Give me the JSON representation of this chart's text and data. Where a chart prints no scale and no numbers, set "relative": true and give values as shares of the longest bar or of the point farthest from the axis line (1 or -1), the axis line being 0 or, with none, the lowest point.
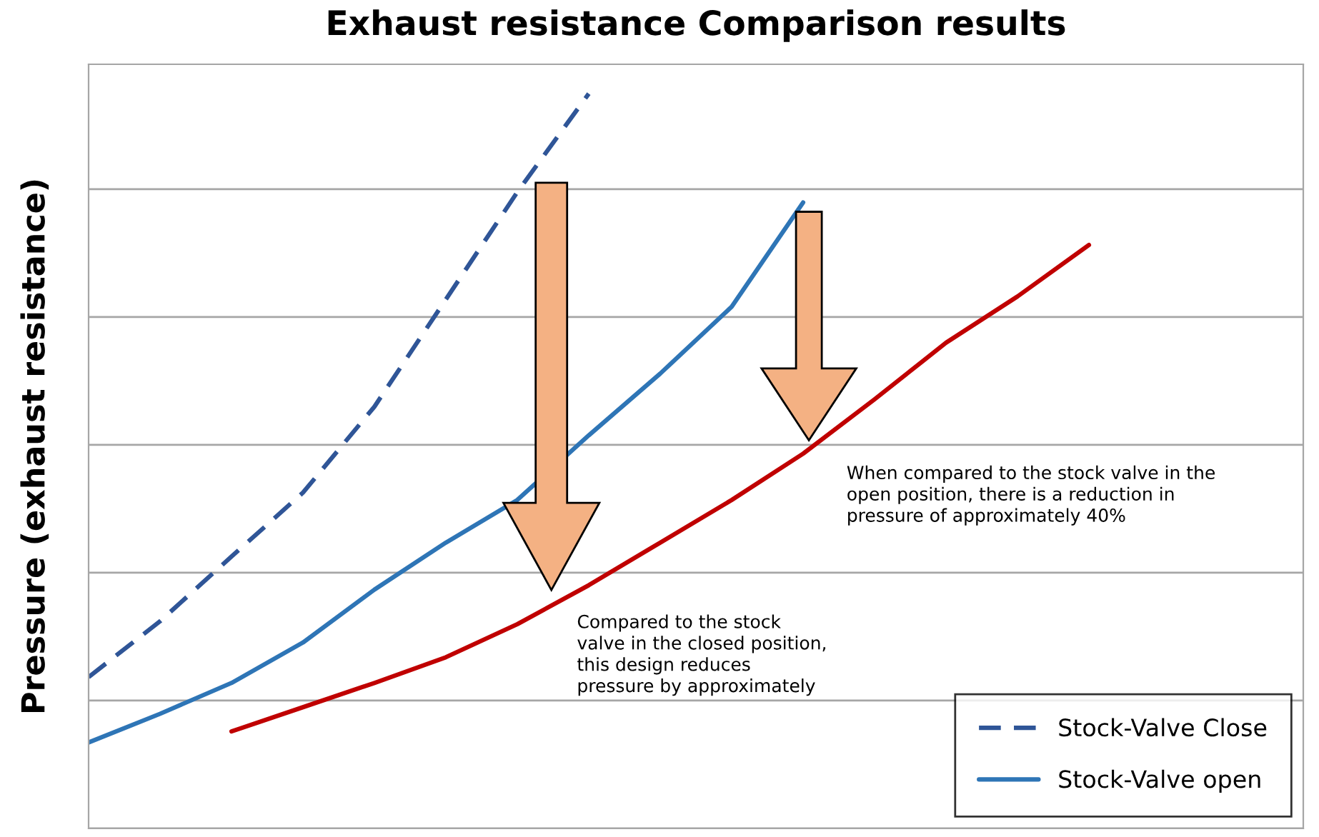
{
  "chart_data": {
    "type": "line",
    "title": "Exhaust resistance Comparison results",
    "ylabel": "Pressure (exhaust resistance)",
    "relative": true,
    "grid": "y",
    "legend": "bottom right",
    "categories": [
      null,
      null,
      null,
      null,
      null,
      null,
      null,
      null,
      null,
      null,
      null,
      null,
      null,
      null,
      null
    ],
    "series": [
      {
        "name": "Stock-Valve Close",
        "color": "#2f5597",
        "line_style": "dashed",
        "values": [
          0.206,
          0.282,
          0.37,
          0.457,
          0.574,
          0.72,
          0.866,
          1.0,
          null,
          null,
          null,
          null,
          null,
          null,
          null
        ]
      },
      {
        "name": "Stock-Valve open",
        "color": "#2e75b6",
        "line_style": "solid",
        "values": [
          0.117,
          0.156,
          0.198,
          0.253,
          0.325,
          0.389,
          0.447,
          0.535,
          0.619,
          0.71,
          0.852,
          null,
          null,
          null,
          null
        ]
      },
      {
        "color": "#c00000",
        "line_style": "solid",
        "values": [
          null,
          null,
          0.132,
          0.165,
          0.198,
          0.233,
          0.278,
          0.331,
          0.389,
          0.447,
          0.51,
          0.584,
          0.661,
          0.724,
          0.794
        ]
      }
    ],
    "annotations": [
      "When compared to the stock valve in the\nopen position, there is a reduction in\npressure of approximately 40%",
      "Compared to the stock\nvalve in the closed position,\nthis design reduces\npressure by approximately"
    ]
  }
}
